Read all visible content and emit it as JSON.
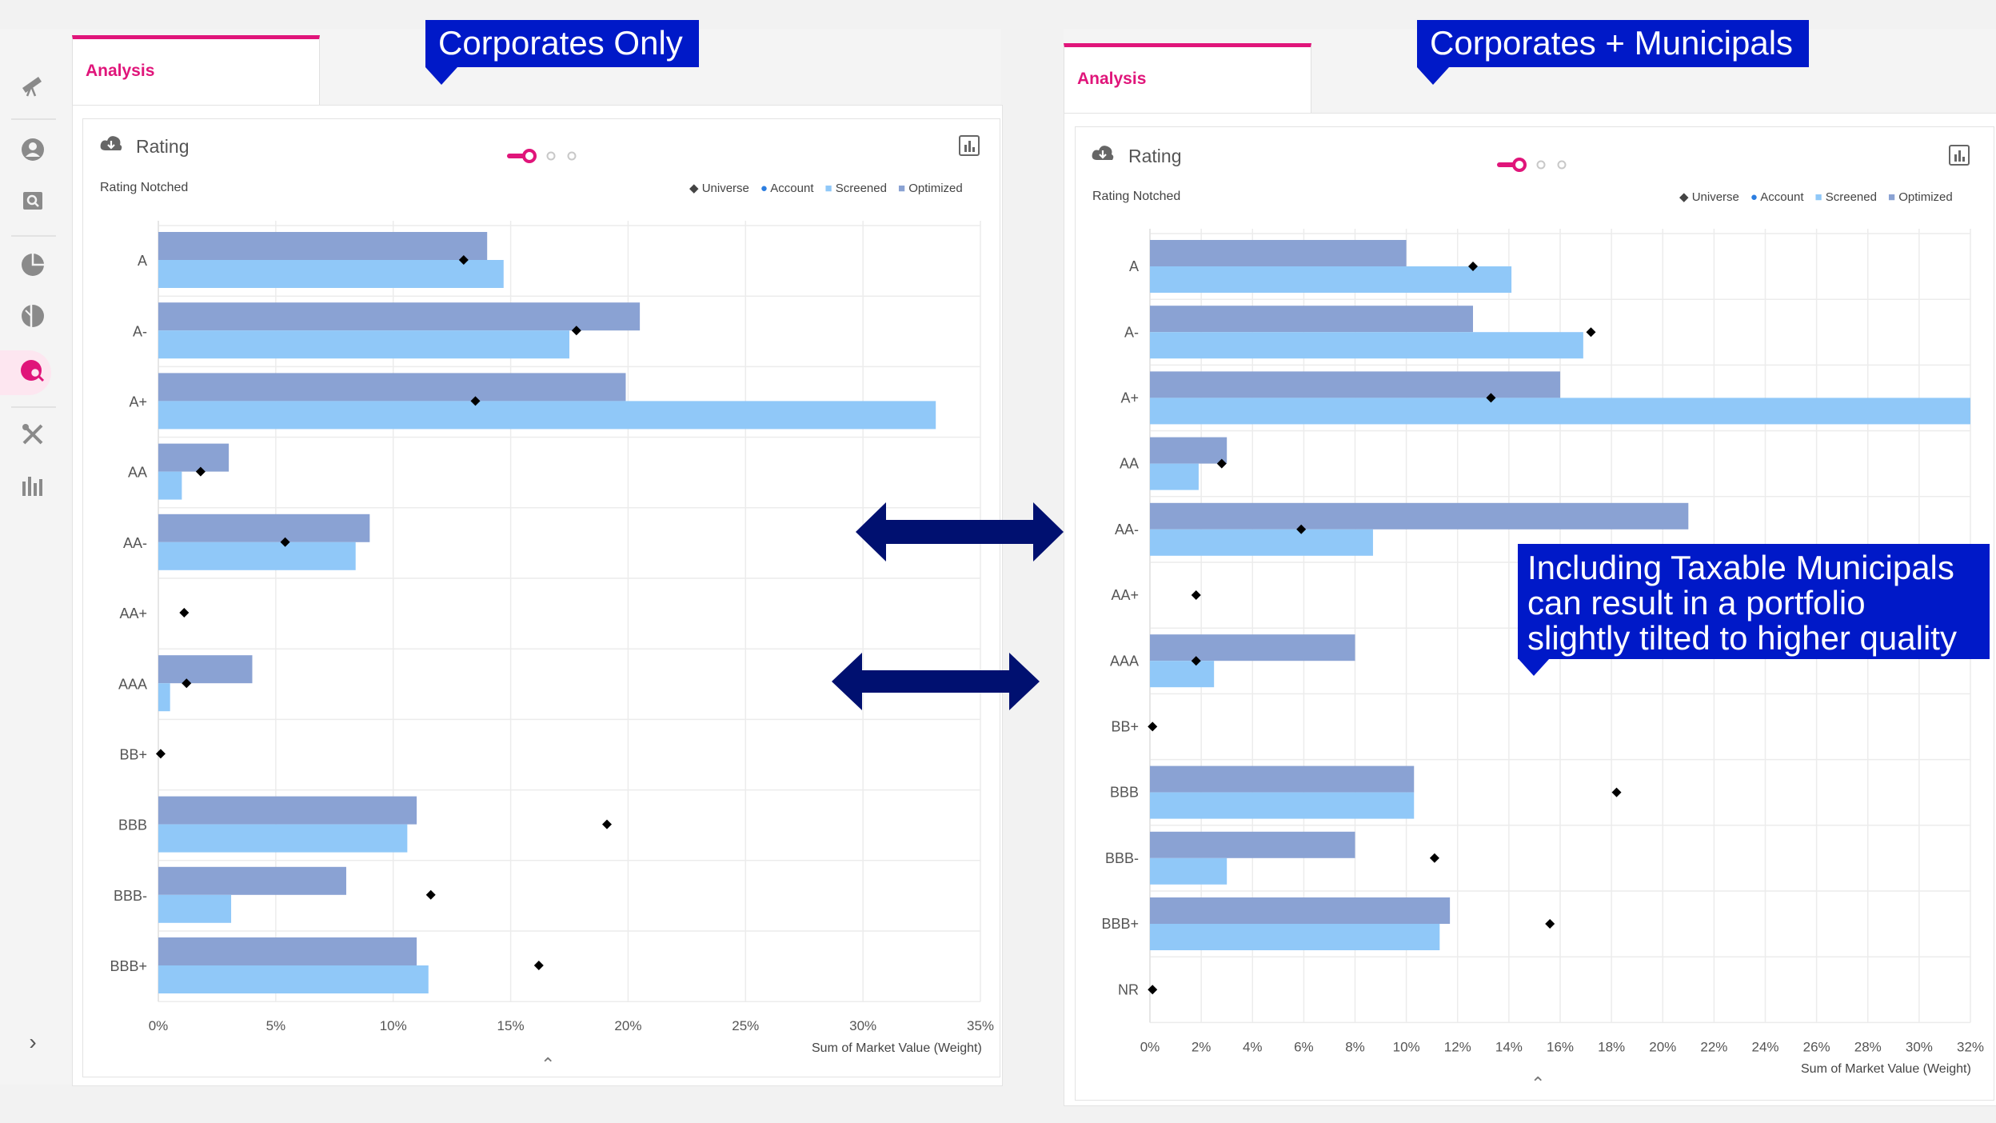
{
  "callouts": {
    "left": "Corporates Only",
    "right": "Corporates + Municipals",
    "note": [
      "Including Taxable Municipals",
      "can result in a portfolio",
      "slightly tilted to higher quality"
    ]
  },
  "tabs": {
    "left": "Analysis",
    "right": "Analysis"
  },
  "sidebar": {
    "icons": [
      "telescope-icon",
      "user-icon",
      "search-doc-icon",
      "pie-chart-icon",
      "half-pie-icon",
      "analysis-search-icon",
      "tools-icon",
      "bar-chart-icon"
    ],
    "expand_label": "›"
  },
  "colors": {
    "brand": "#e0157a",
    "screened": "#90c8f8",
    "optimized": "#8aa2d3",
    "account": "#2b7de0",
    "callout": "#0019c8",
    "arrow": "#001070"
  },
  "chart_data": [
    {
      "type": "bar",
      "title": "Rating",
      "subtitle": "Rating Notched",
      "xlabel": "Sum of Market Value (Weight)",
      "legend": [
        "Universe",
        "Account",
        "Screened",
        "Optimized"
      ],
      "legend_position": "top-right",
      "orientation": "horizontal",
      "grid": true,
      "xlim": [
        0,
        35
      ],
      "xticks": [
        0,
        5,
        10,
        15,
        20,
        25,
        30,
        35
      ],
      "tick_suffix": "%",
      "categories": [
        "A",
        "A-",
        "A+",
        "AA",
        "AA-",
        "AA+",
        "AAA",
        "BB+",
        "BBB",
        "BBB-",
        "BBB+"
      ],
      "series": [
        {
          "name": "Optimized",
          "values": [
            14.0,
            20.5,
            19.9,
            3.0,
            9.0,
            0,
            4.0,
            0,
            11.0,
            8.0,
            11.0
          ]
        },
        {
          "name": "Screened",
          "values": [
            14.7,
            17.5,
            33.1,
            1.0,
            8.4,
            0,
            0.5,
            0,
            10.6,
            3.1,
            11.5
          ]
        },
        {
          "name": "Universe",
          "values": [
            13.0,
            17.8,
            13.5,
            1.8,
            5.4,
            1.1,
            1.2,
            0.1,
            19.1,
            11.6,
            16.2
          ]
        }
      ]
    },
    {
      "type": "bar",
      "title": "Rating",
      "subtitle": "Rating Notched",
      "xlabel": "Sum of Market Value (Weight)",
      "legend": [
        "Universe",
        "Account",
        "Screened",
        "Optimized"
      ],
      "legend_position": "top-right",
      "orientation": "horizontal",
      "grid": true,
      "xlim": [
        0,
        32
      ],
      "xticks": [
        0,
        2,
        4,
        6,
        8,
        10,
        12,
        14,
        16,
        18,
        20,
        22,
        24,
        26,
        28,
        30,
        32
      ],
      "tick_suffix": "%",
      "categories": [
        "A",
        "A-",
        "A+",
        "AA",
        "AA-",
        "AA+",
        "AAA",
        "BB+",
        "BBB",
        "BBB-",
        "BBB+",
        "NR"
      ],
      "series": [
        {
          "name": "Optimized",
          "values": [
            10.0,
            12.6,
            16.0,
            3.0,
            21.0,
            0,
            8.0,
            0,
            10.3,
            8.0,
            11.7,
            0
          ]
        },
        {
          "name": "Screened",
          "values": [
            14.1,
            16.9,
            32.0,
            1.9,
            8.7,
            0,
            2.5,
            0,
            10.3,
            3.0,
            11.3,
            0
          ]
        },
        {
          "name": "Universe",
          "values": [
            12.6,
            17.2,
            13.3,
            2.8,
            5.9,
            1.8,
            1.8,
            0.1,
            18.2,
            11.1,
            15.6,
            0.1
          ]
        }
      ]
    }
  ]
}
